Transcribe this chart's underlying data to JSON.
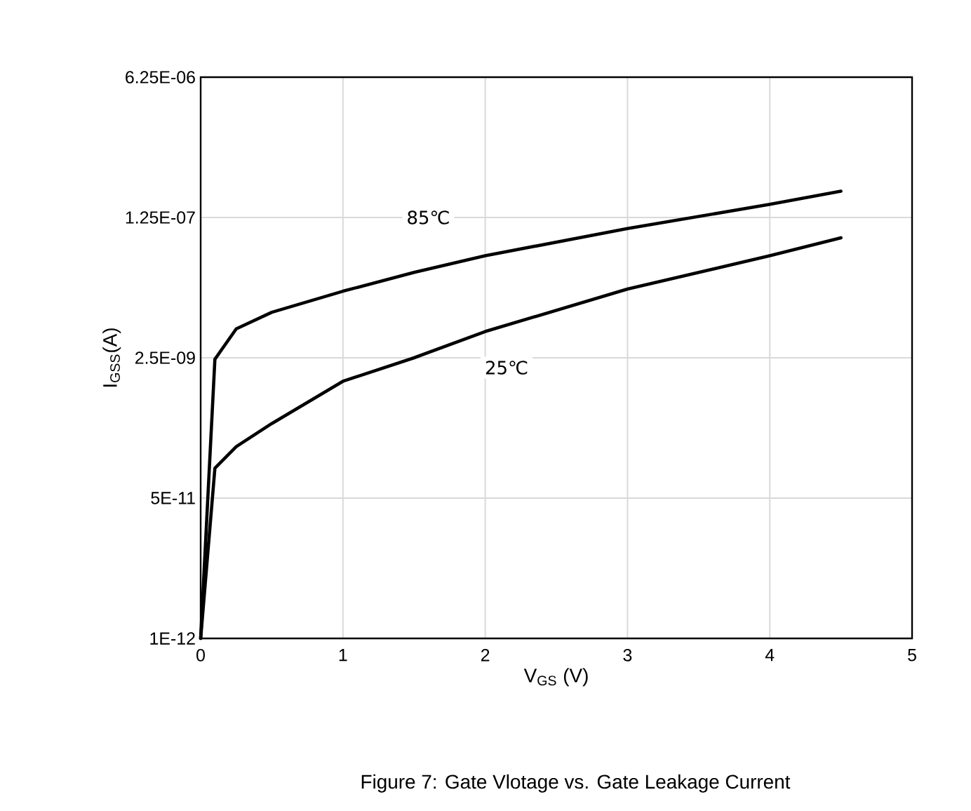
{
  "chart_data": {
    "type": "line",
    "xlabel": "V$_{GS}$ (V)",
    "ylabel": "I$_{GSS}$(A)",
    "xlim": [
      0,
      5
    ],
    "xticks": [
      0,
      1,
      2,
      3,
      4,
      5
    ],
    "ylim": [
      1e-12,
      6.25e-06
    ],
    "yticks": [
      {
        "value": 1e-12,
        "label": "1E-12"
      },
      {
        "value": 5e-11,
        "label": "5E-11"
      },
      {
        "value": 2.5e-09,
        "label": "2.5E-09"
      },
      {
        "value": 1.25e-07,
        "label": "1.25E-07"
      },
      {
        "value": 6.25e-06,
        "label": "6.25E-06"
      }
    ],
    "log": "y",
    "grid": true,
    "marker": "none",
    "line_style": "solid",
    "x": [
      0,
      0.1,
      0.25,
      0.5,
      1,
      1.5,
      2,
      3,
      4,
      4.5
    ],
    "series": [
      {
        "color": "#000000",
        "values": [
          1e-12,
          2.4e-09,
          5.6e-09,
          8.9e-09,
          1.6e-08,
          2.7e-08,
          4.3e-08,
          9.2e-08,
          1.8e-07,
          2.6e-07
        ]
      },
      {
        "color": "#000000",
        "values": [
          1e-12,
          1.15e-10,
          2.1e-10,
          4e-10,
          1.3e-09,
          2.5e-09,
          5.2e-09,
          1.7e-08,
          4.3e-08,
          7.1e-08
        ]
      }
    ],
    "annotations": [
      {
        "text": "85℃",
        "x": 1.6,
        "y": 1.25e-07
      },
      {
        "text": "25℃",
        "x": 2.15,
        "y": 1.9e-09
      },
      "Figure 7: Gate Vlotage vs. Gate Leakage Current"
    ]
  }
}
